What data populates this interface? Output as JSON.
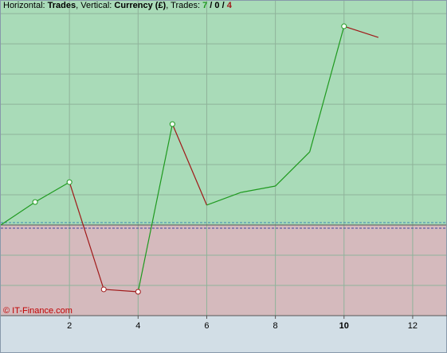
{
  "chart_data": {
    "type": "line",
    "title_parts": [
      "Horizontal:",
      "Trades",
      ", Vertical:",
      "Currency (£)",
      ", Trades:",
      "7",
      "/",
      "0",
      "/",
      "4"
    ],
    "watermark": "© IT-Finance.com",
    "x": [
      0,
      1,
      2,
      3,
      4,
      5,
      6,
      7,
      8,
      9,
      10,
      11
    ],
    "values": [
      0,
      0.76,
      1.42,
      -2.13,
      -2.21,
      3.34,
      0.66,
      1.08,
      1.29,
      2.42,
      6.58,
      6.21
    ],
    "markers": [
      1,
      2,
      3,
      4,
      5,
      10
    ],
    "up_color": "#1f9a1f",
    "down_color": "#a01818",
    "xlim": [
      0,
      13
    ],
    "ylim": [
      -3,
      7.45
    ],
    "xticks": [
      2,
      4,
      6,
      8,
      10,
      12
    ],
    "highlight_xtick": 10,
    "yticks": [
      -3,
      -2,
      -1,
      0,
      1,
      2,
      3,
      4,
      5,
      6,
      7
    ],
    "ytick_labels": false,
    "grid": true
  }
}
